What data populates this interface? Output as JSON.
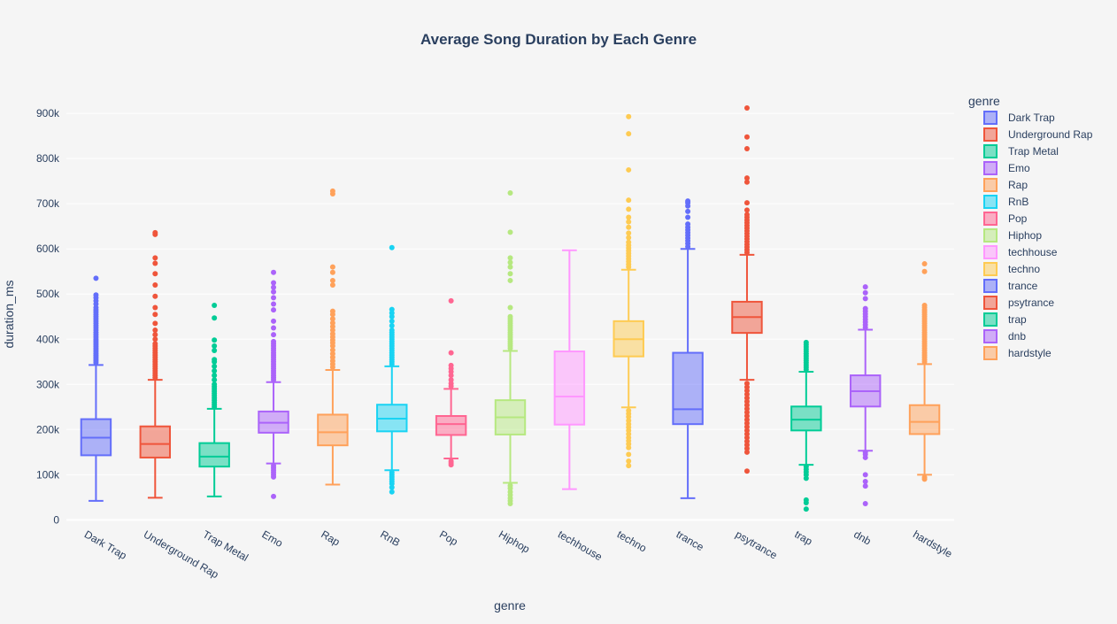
{
  "chart_data": {
    "type": "box",
    "title": "Average Song Duration by Each Genre",
    "xlabel": "genre",
    "ylabel": "duration_ms",
    "legend_title": "genre",
    "legend_position": "right",
    "grid": true,
    "ylim": [
      -15000,
      965000
    ],
    "y_ticks": [
      0,
      100000,
      200000,
      300000,
      400000,
      500000,
      600000,
      700000,
      800000,
      900000
    ],
    "y_tick_labels": [
      "0",
      "100k",
      "200k",
      "300k",
      "400k",
      "500k",
      "600k",
      "700k",
      "800k",
      "900k"
    ],
    "categories": [
      "Dark Trap",
      "Underground Rap",
      "Trap Metal",
      "Emo",
      "Rap",
      "RnB",
      "Pop",
      "Hiphop",
      "techhouse",
      "techno",
      "trance",
      "psytrance",
      "trap",
      "dnb",
      "hardstyle"
    ],
    "series": [
      {
        "name": "Dark Trap",
        "color": "#636efa",
        "min": 42000,
        "q1": 143000,
        "median": 182000,
        "q3": 223000,
        "max": 343000,
        "outliers": [
          348000,
          352000,
          356000,
          360000,
          364000,
          368000,
          372000,
          376000,
          380000,
          384000,
          388000,
          392000,
          396000,
          400000,
          405000,
          410000,
          415000,
          420000,
          425000,
          430000,
          435000,
          440000,
          445000,
          450000,
          455000,
          460000,
          465000,
          470000,
          478000,
          485000,
          492000,
          498000,
          535000
        ]
      },
      {
        "name": "Underground Rap",
        "color": "#ef553b",
        "min": 49000,
        "q1": 138000,
        "median": 168000,
        "q3": 207000,
        "max": 310000,
        "outliers": [
          315000,
          320000,
          325000,
          330000,
          335000,
          340000,
          345000,
          350000,
          355000,
          360000,
          365000,
          370000,
          375000,
          380000,
          385000,
          390000,
          400000,
          410000,
          420000,
          435000,
          455000,
          470000,
          495000,
          520000,
          545000,
          568000,
          580000,
          632000,
          636000
        ]
      },
      {
        "name": "Trap Metal",
        "color": "#00cc96",
        "min": 52000,
        "q1": 118000,
        "median": 140000,
        "q3": 170000,
        "max": 246000,
        "outliers": [
          250000,
          255000,
          260000,
          265000,
          270000,
          275000,
          280000,
          285000,
          290000,
          295000,
          300000,
          310000,
          320000,
          330000,
          340000,
          350000,
          355000,
          375000,
          385000,
          398000,
          447000,
          475000
        ]
      },
      {
        "name": "Emo",
        "color": "#ab63fa",
        "min": 125000,
        "q1": 193000,
        "median": 215000,
        "q3": 240000,
        "max": 305000,
        "outliers": [
          52000,
          95000,
          100000,
          105000,
          110000,
          115000,
          120000,
          310000,
          315000,
          320000,
          325000,
          330000,
          335000,
          340000,
          345000,
          350000,
          355000,
          360000,
          365000,
          370000,
          375000,
          380000,
          385000,
          390000,
          395000,
          410000,
          425000,
          440000,
          465000,
          478000,
          492000,
          505000,
          515000,
          525000,
          548000
        ]
      },
      {
        "name": "Rap",
        "color": "#ffa15a",
        "min": 78000,
        "q1": 165000,
        "median": 194000,
        "q3": 233000,
        "max": 332000,
        "outliers": [
          338000,
          345000,
          352000,
          360000,
          368000,
          376000,
          385000,
          392000,
          398000,
          405000,
          412000,
          420000,
          428000,
          436000,
          445000,
          455000,
          462000,
          520000,
          530000,
          548000,
          560000,
          722000,
          728000
        ]
      },
      {
        "name": "RnB",
        "color": "#19d3f3",
        "min": 110000,
        "q1": 196000,
        "median": 224000,
        "q3": 255000,
        "max": 340000,
        "outliers": [
          62000,
          72000,
          80000,
          85000,
          90000,
          95000,
          100000,
          105000,
          345000,
          350000,
          355000,
          360000,
          365000,
          370000,
          375000,
          380000,
          385000,
          390000,
          395000,
          400000,
          405000,
          410000,
          415000,
          420000,
          430000,
          440000,
          450000,
          458000,
          466000,
          603000
        ]
      },
      {
        "name": "Pop",
        "color": "#ff6692",
        "min": 136000,
        "q1": 188000,
        "median": 212000,
        "q3": 230000,
        "max": 290000,
        "outliers": [
          122000,
          126000,
          130000,
          296000,
          302000,
          310000,
          320000,
          328000,
          335000,
          342000,
          370000,
          485000
        ]
      },
      {
        "name": "Hiphop",
        "color": "#b6e880",
        "min": 82000,
        "q1": 189000,
        "median": 227000,
        "q3": 265000,
        "max": 374000,
        "outliers": [
          36000,
          42000,
          48000,
          55000,
          62000,
          70000,
          76000,
          380000,
          385000,
          390000,
          395000,
          400000,
          405000,
          410000,
          415000,
          420000,
          425000,
          430000,
          435000,
          440000,
          445000,
          450000,
          470000,
          530000,
          545000,
          560000,
          570000,
          580000,
          637000,
          724000
        ]
      },
      {
        "name": "techhouse",
        "color": "#ff97ff",
        "min": 68000,
        "q1": 211000,
        "median": 273000,
        "q3": 373000,
        "max": 597000,
        "outliers": []
      },
      {
        "name": "techno",
        "color": "#fecb52",
        "min": 249000,
        "q1": 362000,
        "median": 400000,
        "q3": 440000,
        "max": 554000,
        "outliers": [
          120000,
          130000,
          145000,
          160000,
          168000,
          175000,
          182000,
          190000,
          198000,
          205000,
          212000,
          220000,
          228000,
          235000,
          242000,
          560000,
          566000,
          572000,
          578000,
          584000,
          590000,
          596000,
          602000,
          608000,
          615000,
          625000,
          635000,
          648000,
          660000,
          670000,
          688000,
          708000,
          775000,
          855000,
          893000
        ]
      },
      {
        "name": "trance",
        "color": "#636efa",
        "min": 48000,
        "q1": 212000,
        "median": 245000,
        "q3": 370000,
        "max": 600000,
        "outliers": [
          605000,
          612000,
          618000,
          624000,
          630000,
          636000,
          642000,
          648000,
          655000,
          670000,
          683000,
          695000,
          702000,
          706000
        ]
      },
      {
        "name": "psytrance",
        "color": "#ef553b",
        "min": 310000,
        "q1": 414000,
        "median": 449000,
        "q3": 483000,
        "max": 587000,
        "outliers": [
          108000,
          150000,
          158000,
          166000,
          174000,
          182000,
          190000,
          198000,
          206000,
          214000,
          222000,
          230000,
          238000,
          246000,
          254000,
          262000,
          270000,
          278000,
          286000,
          294000,
          302000,
          592000,
          598000,
          604000,
          610000,
          616000,
          622000,
          628000,
          634000,
          640000,
          646000,
          652000,
          658000,
          664000,
          670000,
          676000,
          686000,
          702000,
          748000,
          757000,
          822000,
          848000,
          912000
        ]
      },
      {
        "name": "trap",
        "color": "#00cc96",
        "min": 122000,
        "q1": 198000,
        "median": 222000,
        "q3": 251000,
        "max": 328000,
        "outliers": [
          24000,
          38000,
          44000,
          92000,
          100000,
          106000,
          112000,
          118000,
          333000,
          338000,
          343000,
          348000,
          353000,
          358000,
          363000,
          368000,
          373000,
          378000,
          383000,
          388000,
          393000
        ]
      },
      {
        "name": "dnb",
        "color": "#ab63fa",
        "min": 153000,
        "q1": 251000,
        "median": 285000,
        "q3": 320000,
        "max": 421000,
        "outliers": [
          36000,
          75000,
          85000,
          100000,
          138000,
          145000,
          150000,
          426000,
          432000,
          438000,
          444000,
          450000,
          456000,
          462000,
          468000,
          490000,
          503000,
          516000
        ]
      },
      {
        "name": "hardstyle",
        "color": "#ffa15a",
        "min": 100000,
        "q1": 190000,
        "median": 217000,
        "q3": 254000,
        "max": 345000,
        "outliers": [
          90000,
          94000,
          350000,
          355000,
          360000,
          365000,
          370000,
          375000,
          380000,
          385000,
          390000,
          395000,
          400000,
          405000,
          410000,
          415000,
          420000,
          425000,
          430000,
          435000,
          440000,
          445000,
          450000,
          455000,
          460000,
          465000,
          470000,
          475000,
          550000,
          567000
        ]
      }
    ]
  }
}
